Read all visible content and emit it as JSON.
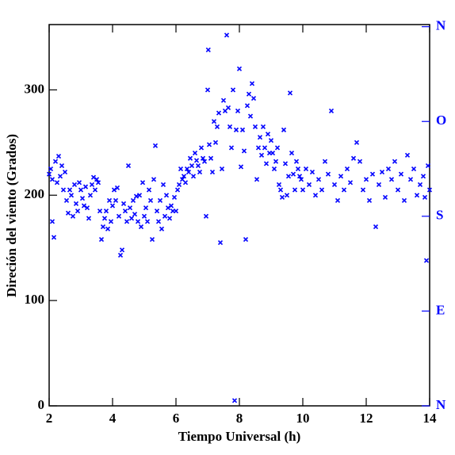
{
  "chart_data": {
    "type": "scatter",
    "xlabel": "Tiempo Universal (h)",
    "ylabel": "Direción del viento (Grados)",
    "color": "#0000ff",
    "xlim": [
      2,
      14
    ],
    "ylim": [
      0,
      362
    ],
    "xticks": [
      2,
      4,
      6,
      8,
      10,
      12,
      14
    ],
    "yticks": [
      0,
      100,
      200,
      300
    ],
    "y2lim": [
      0,
      362
    ],
    "y2ticks": [
      {
        "value": 0,
        "label": "N"
      },
      {
        "value": 90,
        "label": "E"
      },
      {
        "value": 180,
        "label": "S"
      },
      {
        "value": 270,
        "label": "O"
      },
      {
        "value": 360,
        "label": "N"
      }
    ],
    "x": [
      2.0,
      2.05,
      2.1,
      2.1,
      2.15,
      2.2,
      2.25,
      2.3,
      2.35,
      2.4,
      2.45,
      2.5,
      2.55,
      2.6,
      2.65,
      2.7,
      2.75,
      2.8,
      2.85,
      2.9,
      2.95,
      3.0,
      3.05,
      3.1,
      3.15,
      3.2,
      3.25,
      3.3,
      3.35,
      3.4,
      3.45,
      3.5,
      3.55,
      3.6,
      3.65,
      3.7,
      3.75,
      3.8,
      3.85,
      3.9,
      3.95,
      4.0,
      4.05,
      4.1,
      4.15,
      4.2,
      4.25,
      4.3,
      4.35,
      4.4,
      4.45,
      4.5,
      4.55,
      4.6,
      4.65,
      4.7,
      4.75,
      4.8,
      4.85,
      4.9,
      4.95,
      5.0,
      5.05,
      5.1,
      5.15,
      5.2,
      5.25,
      5.3,
      5.35,
      5.4,
      5.45,
      5.5,
      5.55,
      5.6,
      5.65,
      5.7,
      5.75,
      5.8,
      5.85,
      5.9,
      5.95,
      6.0,
      6.05,
      6.1,
      6.15,
      6.2,
      6.25,
      6.3,
      6.35,
      6.4,
      6.45,
      6.5,
      6.55,
      6.6,
      6.65,
      6.7,
      6.75,
      6.8,
      6.85,
      6.9,
      6.95,
      7.0,
      7.02,
      7.05,
      7.1,
      7.15,
      7.2,
      7.25,
      7.3,
      7.35,
      7.4,
      7.45,
      7.5,
      7.55,
      7.6,
      7.65,
      7.7,
      7.75,
      7.8,
      7.85,
      7.9,
      7.95,
      8.0,
      8.05,
      8.1,
      8.15,
      8.2,
      8.25,
      8.3,
      8.35,
      8.4,
      8.45,
      8.5,
      8.55,
      8.6,
      8.65,
      8.7,
      8.75,
      8.8,
      8.85,
      8.9,
      8.95,
      9.0,
      9.05,
      9.1,
      9.15,
      9.2,
      9.25,
      9.3,
      9.35,
      9.4,
      9.45,
      9.5,
      9.55,
      9.6,
      9.65,
      9.7,
      9.75,
      9.8,
      9.85,
      9.9,
      9.95,
      10.0,
      10.1,
      10.2,
      10.3,
      10.4,
      10.5,
      10.6,
      10.7,
      10.8,
      10.9,
      11.0,
      11.1,
      11.2,
      11.3,
      11.4,
      11.5,
      11.6,
      11.7,
      11.8,
      11.9,
      12.0,
      12.1,
      12.2,
      12.3,
      12.4,
      12.5,
      12.6,
      12.7,
      12.8,
      12.9,
      13.0,
      13.1,
      13.2,
      13.3,
      13.4,
      13.5,
      13.6,
      13.7,
      13.8,
      13.85,
      13.9,
      13.95,
      14.0
    ],
    "values": [
      220,
      225,
      215,
      175,
      160,
      232,
      212,
      237,
      218,
      228,
      205,
      222,
      195,
      183,
      205,
      200,
      180,
      210,
      192,
      185,
      212,
      205,
      197,
      190,
      208,
      188,
      178,
      200,
      210,
      217,
      205,
      215,
      212,
      185,
      158,
      170,
      178,
      185,
      168,
      195,
      175,
      190,
      205,
      195,
      207,
      180,
      143,
      148,
      192,
      185,
      175,
      228,
      188,
      178,
      195,
      182,
      199,
      175,
      200,
      170,
      212,
      180,
      188,
      175,
      205,
      195,
      158,
      215,
      247,
      185,
      175,
      195,
      168,
      210,
      180,
      200,
      188,
      178,
      190,
      185,
      198,
      185,
      205,
      210,
      225,
      215,
      218,
      212,
      225,
      222,
      235,
      228,
      218,
      240,
      233,
      228,
      222,
      245,
      235,
      232,
      180,
      300,
      338,
      248,
      235,
      222,
      270,
      250,
      265,
      278,
      155,
      225,
      290,
      280,
      352,
      283,
      265,
      245,
      300,
      5,
      262,
      280,
      320,
      227,
      262,
      242,
      158,
      285,
      296,
      275,
      306,
      292,
      265,
      215,
      245,
      255,
      238,
      265,
      245,
      230,
      258,
      240,
      252,
      240,
      225,
      232,
      245,
      210,
      205,
      198,
      262,
      230,
      200,
      218,
      297,
      240,
      220,
      205,
      232,
      225,
      218,
      215,
      205,
      225,
      210,
      222,
      200,
      215,
      205,
      232,
      220,
      280,
      210,
      195,
      218,
      205,
      225,
      212,
      235,
      250,
      232,
      205,
      215,
      195,
      220,
      170,
      210,
      222,
      198,
      225,
      215,
      232,
      205,
      220,
      195,
      238,
      215,
      225,
      200,
      210,
      218,
      198,
      138,
      228,
      205
    ]
  }
}
